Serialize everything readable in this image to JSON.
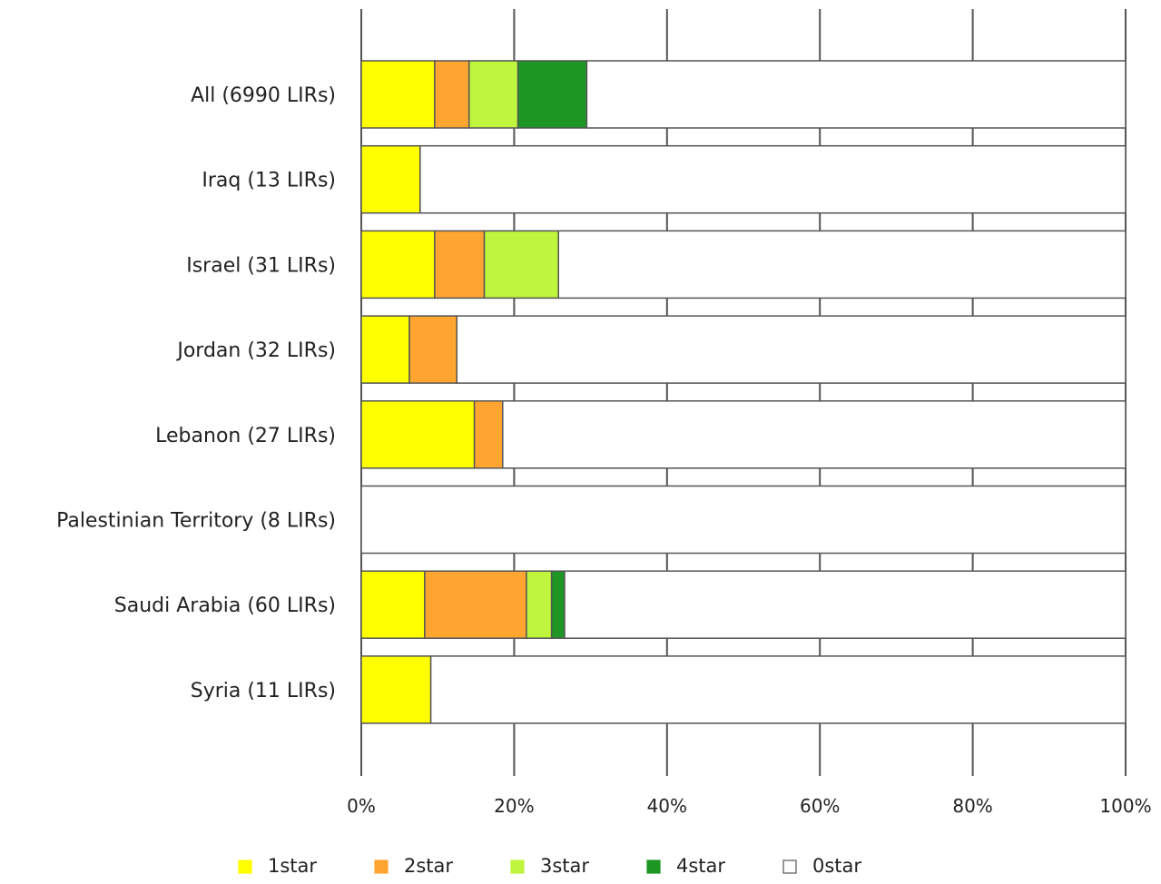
{
  "chart_data": {
    "type": "bar",
    "orientation": "horizontal",
    "stacked": true,
    "percent_stacked": true,
    "categories": [
      "All (6990 LIRs)",
      "Iraq (13 LIRs)",
      "Israel (31 LIRs)",
      "Jordan (32 LIRs)",
      "Lebanon (27 LIRs)",
      "Palestinian Territory (8 LIRs)",
      "Saudi Arabia (60 LIRs)",
      "Syria (11 LIRs)"
    ],
    "series": [
      {
        "name": "1star",
        "color": "#ffff00",
        "values": [
          9.6,
          7.7,
          9.6,
          6.3,
          14.8,
          0,
          8.3,
          9.1
        ]
      },
      {
        "name": "2star",
        "color": "#ffa530",
        "values": [
          4.5,
          0,
          6.5,
          6.2,
          3.7,
          0,
          13.3,
          0
        ]
      },
      {
        "name": "3star",
        "color": "#bff53c",
        "values": [
          6.4,
          0,
          9.7,
          0,
          0,
          0,
          3.3,
          0
        ]
      },
      {
        "name": "4star",
        "color": "#1e9624",
        "values": [
          9.0,
          0,
          0,
          0,
          0,
          0,
          1.7,
          0
        ]
      },
      {
        "name": "0star",
        "color": "#ffffff",
        "values": [
          70.5,
          92.3,
          74.2,
          87.5,
          81.5,
          100,
          73.4,
          90.9
        ]
      }
    ],
    "xlim": [
      0,
      100
    ],
    "xticks": [
      "0%",
      "20%",
      "40%",
      "60%",
      "80%",
      "100%"
    ],
    "grid": true,
    "legend_position": "bottom",
    "title": "",
    "xlabel": "",
    "ylabel": ""
  }
}
